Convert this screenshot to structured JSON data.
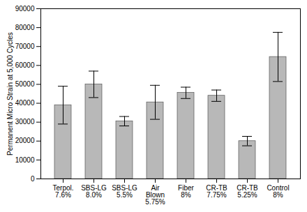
{
  "chart_data": {
    "type": "bar",
    "categories": [
      "Terpol.\n7.6%",
      "SBS-LG\n8.0%",
      "SBS-LG\n5.5%",
      "Air\nBlown\n5.75%",
      "Fiber\n8%",
      "CR-TB\n7.75%",
      "CR-TB\n5.25%",
      "Control\n8%"
    ],
    "values": [
      39000,
      50000,
      30500,
      40500,
      45500,
      44000,
      20000,
      64500
    ],
    "errors": [
      10000,
      7000,
      2500,
      9000,
      3000,
      3000,
      2500,
      13000
    ],
    "color": "#b8b8b8",
    "ylabel": "Permanent Micro Strain at 5,000 Cycles",
    "ylim": [
      0,
      90000
    ],
    "yticks": [
      0,
      10000,
      20000,
      30000,
      40000,
      50000,
      60000,
      70000,
      80000,
      90000
    ],
    "grid": false
  }
}
